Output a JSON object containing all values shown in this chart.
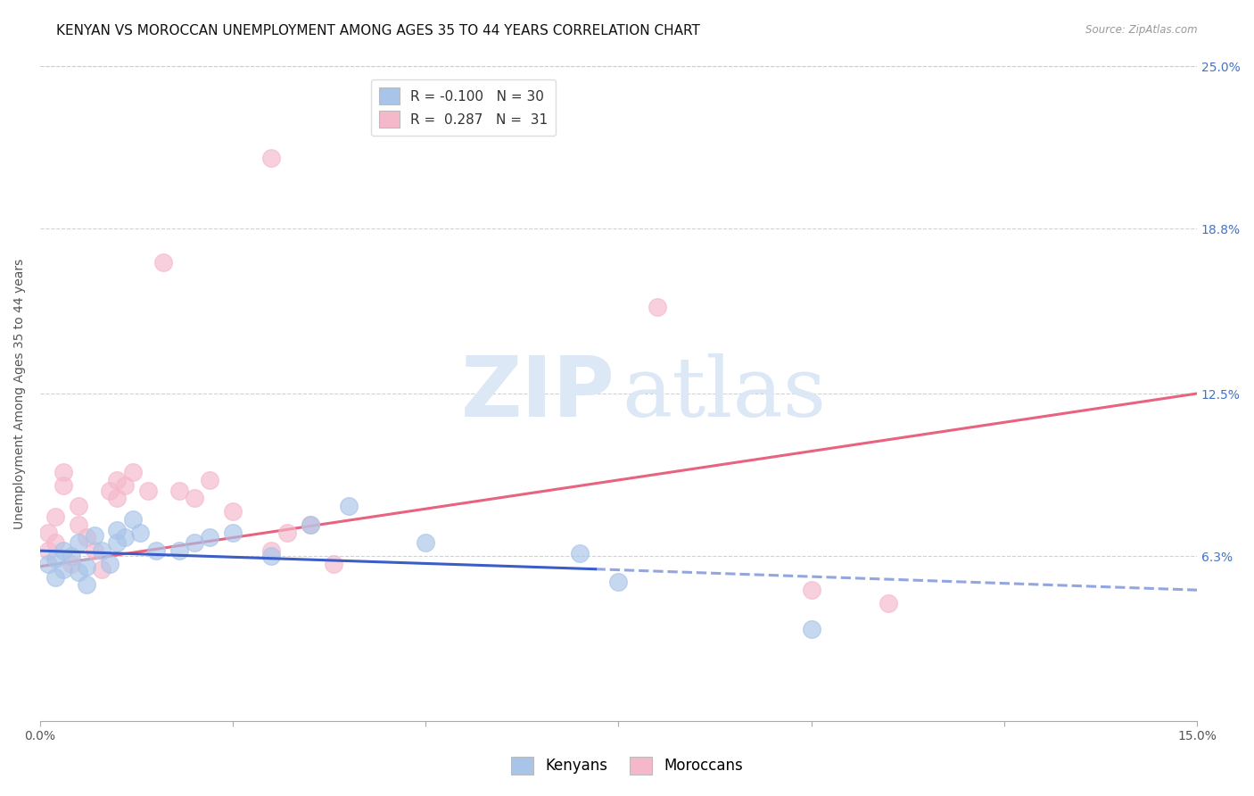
{
  "title": "KENYAN VS MOROCCAN UNEMPLOYMENT AMONG AGES 35 TO 44 YEARS CORRELATION CHART",
  "source": "Source: ZipAtlas.com",
  "ylabel": "Unemployment Among Ages 35 to 44 years",
  "xlim": [
    0.0,
    0.15
  ],
  "ylim": [
    0.0,
    0.25
  ],
  "ytick_labels": [
    "6.3%",
    "12.5%",
    "18.8%",
    "25.0%"
  ],
  "ytick_positions": [
    0.063,
    0.125,
    0.188,
    0.25
  ],
  "kenyan_x": [
    0.001,
    0.002,
    0.002,
    0.003,
    0.003,
    0.004,
    0.005,
    0.005,
    0.006,
    0.006,
    0.007,
    0.008,
    0.009,
    0.01,
    0.01,
    0.011,
    0.012,
    0.013,
    0.015,
    0.018,
    0.02,
    0.022,
    0.025,
    0.03,
    0.035,
    0.04,
    0.05,
    0.07,
    0.075,
    0.1
  ],
  "kenyan_y": [
    0.06,
    0.055,
    0.062,
    0.058,
    0.065,
    0.063,
    0.057,
    0.068,
    0.059,
    0.052,
    0.071,
    0.065,
    0.06,
    0.068,
    0.073,
    0.07,
    0.077,
    0.072,
    0.065,
    0.065,
    0.068,
    0.07,
    0.072,
    0.063,
    0.075,
    0.082,
    0.068,
    0.064,
    0.053,
    0.035
  ],
  "moroccan_x": [
    0.001,
    0.001,
    0.002,
    0.002,
    0.003,
    0.003,
    0.004,
    0.005,
    0.005,
    0.006,
    0.007,
    0.008,
    0.009,
    0.01,
    0.01,
    0.011,
    0.012,
    0.014,
    0.016,
    0.018,
    0.02,
    0.022,
    0.025,
    0.03,
    0.032,
    0.035,
    0.038,
    0.08,
    0.1,
    0.11,
    0.03
  ],
  "moroccan_y": [
    0.065,
    0.072,
    0.068,
    0.078,
    0.09,
    0.095,
    0.06,
    0.082,
    0.075,
    0.07,
    0.065,
    0.058,
    0.088,
    0.092,
    0.085,
    0.09,
    0.095,
    0.088,
    0.175,
    0.088,
    0.085,
    0.092,
    0.08,
    0.065,
    0.072,
    0.075,
    0.06,
    0.158,
    0.05,
    0.045,
    0.215
  ],
  "kenyan_R": -0.1,
  "kenyan_N": 30,
  "moroccan_R": 0.287,
  "moroccan_N": 31,
  "kenyan_color": "#a8c4e8",
  "moroccan_color": "#f5b8cb",
  "kenyan_line_color": "#3a5dc7",
  "moroccan_line_color": "#e8637f",
  "kenyan_line_start": 0.0,
  "kenyan_line_solid_end": 0.075,
  "kenyan_line_end": 0.15,
  "moroccan_line_start": 0.0,
  "moroccan_line_end": 0.15,
  "title_fontsize": 11,
  "axis_label_fontsize": 10,
  "tick_fontsize": 10,
  "legend_fontsize": 11,
  "watermark_color": "#dce8f5",
  "background_color": "#ffffff",
  "grid_color": "#cccccc"
}
